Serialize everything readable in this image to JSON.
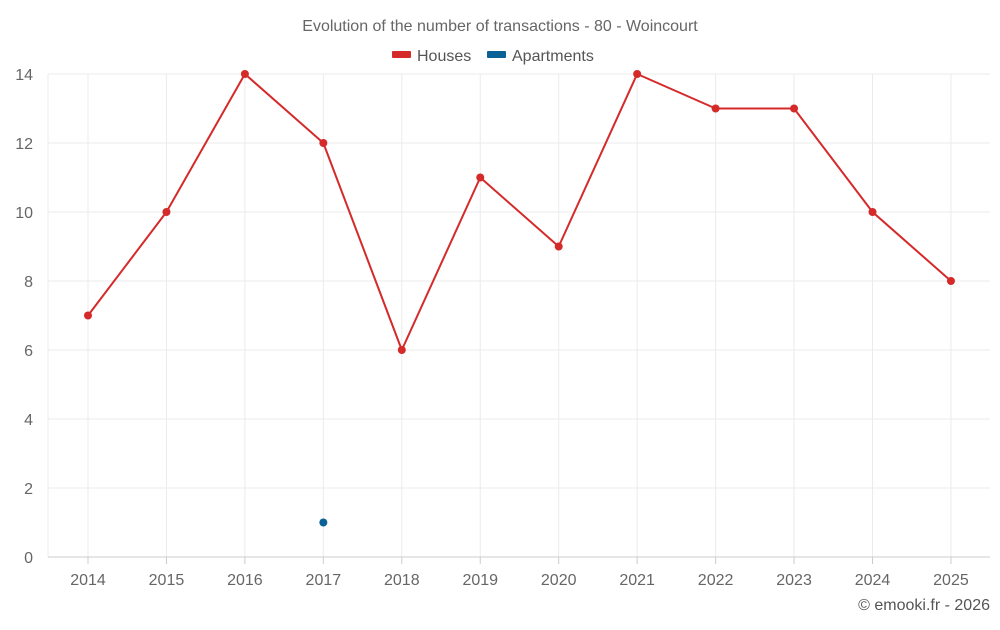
{
  "chart_data": {
    "type": "line",
    "title": "Evolution of the number of transactions - 80 - Woincourt",
    "categories": [
      "2014",
      "2015",
      "2016",
      "2017",
      "2018",
      "2019",
      "2020",
      "2021",
      "2022",
      "2023",
      "2024",
      "2025"
    ],
    "series": [
      {
        "name": "Houses",
        "color": "#d42a2a",
        "values": [
          7,
          10,
          14,
          12,
          6,
          11,
          9,
          14,
          13,
          13,
          10,
          8
        ]
      },
      {
        "name": "Apartments",
        "color": "#0a6196",
        "values": [
          null,
          null,
          null,
          1,
          null,
          null,
          null,
          null,
          null,
          null,
          null,
          null
        ]
      }
    ],
    "ylim": [
      0,
      14
    ],
    "yticks": [
      0,
      2,
      4,
      6,
      8,
      10,
      12,
      14
    ],
    "xlabel": "",
    "ylabel": "",
    "grid": true,
    "legend_position": "top-center",
    "credit": "© emooki.fr - 2026"
  }
}
